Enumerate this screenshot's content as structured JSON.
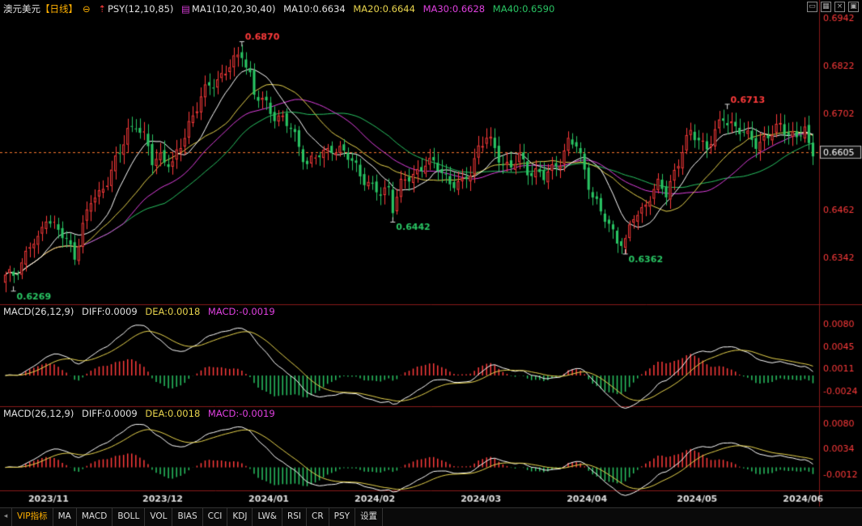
{
  "header": {
    "instrument": "澳元美元",
    "period": "【日线】",
    "indicator": "PSY(12,10,85)",
    "ma_group": "MA1(10,20,30,40)",
    "ma10": "MA10:0.6634",
    "ma20": "MA20:0.6644",
    "ma30": "MA30:0.6628",
    "ma40": "MA40:0.6590"
  },
  "macd_panel_1": {
    "name": "MACD(26,12,9)",
    "diff": "DIFF:0.0009",
    "dea": "DEA:0.0018",
    "macd": "MACD:-0.0019"
  },
  "macd_panel_2": {
    "name": "MACD(26,12,9)",
    "diff": "DIFF:0.0009",
    "dea": "DEA:0.0018",
    "macd": "MACD:-0.0019"
  },
  "tabs": [
    "VIP指标",
    "MA",
    "MACD",
    "BOLL",
    "VOL",
    "BIAS",
    "CCI",
    "KDJ",
    "LW&",
    "RSI",
    "CR",
    "PSY",
    "设置"
  ],
  "colors": {
    "up": "#ff3b3b",
    "down": "#29c463",
    "ma10": "#ffffff",
    "ma20": "#e8d44d",
    "ma30": "#e040e0",
    "ma40": "#29c463",
    "price_line": "#ff7a30"
  },
  "chart_data": {
    "type": "candlestick",
    "price_axis_ticks": [
      "0.6942",
      "0.6822",
      "0.6702",
      "0.6605",
      "0.6462",
      "0.6342"
    ],
    "current_price": "0.6605",
    "price_ylim": [
      0.6232,
      0.695
    ],
    "annotations": [
      {
        "label": "0.6870",
        "kind": "high",
        "index": 58
      },
      {
        "label": "0.6269",
        "kind": "low",
        "index": 2
      },
      {
        "label": "0.6442",
        "kind": "low",
        "index": 95
      },
      {
        "label": "0.6362",
        "kind": "low",
        "index": 152
      },
      {
        "label": "0.6713",
        "kind": "high",
        "index": 177
      }
    ],
    "x_axis_labels": [
      {
        "label": "2023/11",
        "index": 10
      },
      {
        "label": "2023/12",
        "index": 38
      },
      {
        "label": "2024/01",
        "index": 64
      },
      {
        "label": "2024/02",
        "index": 90
      },
      {
        "label": "2024/03",
        "index": 116
      },
      {
        "label": "2024/04",
        "index": 142
      },
      {
        "label": "2024/05",
        "index": 169
      },
      {
        "label": "2024/06",
        "index": 195
      }
    ],
    "close_anchors": [
      [
        0,
        0.629
      ],
      [
        2,
        0.63
      ],
      [
        4,
        0.633
      ],
      [
        6,
        0.637
      ],
      [
        8,
        0.638
      ],
      [
        10,
        0.645
      ],
      [
        12,
        0.642
      ],
      [
        15,
        0.638
      ],
      [
        17,
        0.635
      ],
      [
        19,
        0.642
      ],
      [
        21,
        0.648
      ],
      [
        23,
        0.65
      ],
      [
        26,
        0.656
      ],
      [
        28,
        0.66
      ],
      [
        30,
        0.666
      ],
      [
        32,
        0.668
      ],
      [
        34,
        0.664
      ],
      [
        36,
        0.658
      ],
      [
        38,
        0.66
      ],
      [
        41,
        0.657
      ],
      [
        43,
        0.662
      ],
      [
        45,
        0.668
      ],
      [
        48,
        0.674
      ],
      [
        50,
        0.677
      ],
      [
        52,
        0.679
      ],
      [
        55,
        0.682
      ],
      [
        57,
        0.684
      ],
      [
        58,
        0.6855
      ],
      [
        60,
        0.68
      ],
      [
        61,
        0.675
      ],
      [
        63,
        0.673
      ],
      [
        66,
        0.67
      ],
      [
        68,
        0.669
      ],
      [
        70,
        0.666
      ],
      [
        72,
        0.662
      ],
      [
        74,
        0.658
      ],
      [
        76,
        0.659
      ],
      [
        78,
        0.66
      ],
      [
        80,
        0.662
      ],
      [
        82,
        0.661
      ],
      [
        84,
        0.659
      ],
      [
        86,
        0.657
      ],
      [
        88,
        0.654
      ],
      [
        90,
        0.651
      ],
      [
        92,
        0.65
      ],
      [
        94,
        0.652
      ],
      [
        95,
        0.647
      ],
      [
        97,
        0.652
      ],
      [
        99,
        0.654
      ],
      [
        101,
        0.656
      ],
      [
        103,
        0.658
      ],
      [
        105,
        0.657
      ],
      [
        107,
        0.656
      ],
      [
        109,
        0.653
      ],
      [
        112,
        0.652
      ],
      [
        114,
        0.656
      ],
      [
        116,
        0.662
      ],
      [
        118,
        0.664
      ],
      [
        120,
        0.661
      ],
      [
        122,
        0.658
      ],
      [
        124,
        0.657
      ],
      [
        126,
        0.659
      ],
      [
        128,
        0.656
      ],
      [
        130,
        0.656
      ],
      [
        132,
        0.654
      ],
      [
        134,
        0.656
      ],
      [
        136,
        0.659
      ],
      [
        138,
        0.663
      ],
      [
        140,
        0.662
      ],
      [
        142,
        0.656
      ],
      [
        144,
        0.65
      ],
      [
        146,
        0.645
      ],
      [
        148,
        0.642
      ],
      [
        150,
        0.639
      ],
      [
        152,
        0.638
      ],
      [
        154,
        0.644
      ],
      [
        156,
        0.646
      ],
      [
        158,
        0.65
      ],
      [
        160,
        0.652
      ],
      [
        162,
        0.65
      ],
      [
        164,
        0.656
      ],
      [
        166,
        0.661
      ],
      [
        168,
        0.665
      ],
      [
        170,
        0.664
      ],
      [
        172,
        0.662
      ],
      [
        174,
        0.665
      ],
      [
        176,
        0.669
      ],
      [
        178,
        0.668
      ],
      [
        180,
        0.666
      ],
      [
        182,
        0.664
      ],
      [
        184,
        0.663
      ],
      [
        186,
        0.664
      ],
      [
        188,
        0.665
      ],
      [
        190,
        0.667
      ],
      [
        192,
        0.666
      ],
      [
        194,
        0.664
      ],
      [
        196,
        0.666
      ],
      [
        197,
        0.6615
      ],
      [
        198,
        0.6605
      ]
    ],
    "macd_ylim_1": [
      -0.0045,
      0.009
    ],
    "macd_ticks_1": [
      "0.0080",
      "0.0045",
      "0.0011",
      "-0.0024"
    ],
    "macd_ylim_2": [
      -0.004,
      0.009
    ],
    "macd_ticks_2": [
      "0.0080",
      "0.0034",
      "-0.0012"
    ]
  }
}
